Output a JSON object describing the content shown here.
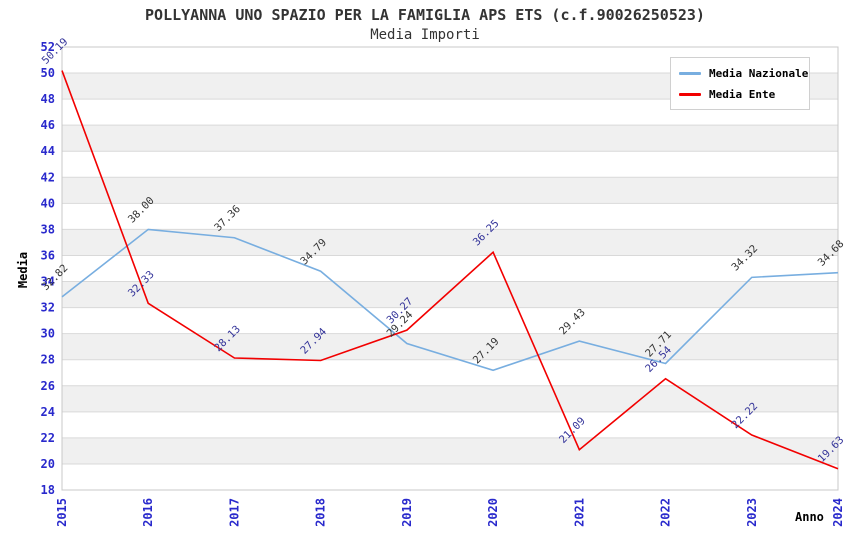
{
  "page": {
    "background": "#FFFFFF"
  },
  "chart_data": {
    "type": "line",
    "title": "POLLYANNA UNO SPAZIO PER LA FAMIGLIA APS ETS (c.f.90026250523)",
    "subtitle": "Media Importi",
    "xlabel": "Anno",
    "ylabel": "Media",
    "categories": [
      "2015",
      "2016",
      "2017",
      "2018",
      "2019",
      "2020",
      "2021",
      "2022",
      "2023",
      "2024"
    ],
    "series": [
      {
        "name": "Media Nazionale",
        "color": "#78AEE0",
        "label_color": "#333333",
        "values": [
          32.82,
          38.0,
          37.36,
          34.79,
          29.24,
          27.19,
          29.43,
          27.71,
          34.32,
          34.68
        ]
      },
      {
        "name": "Media Ente",
        "color": "#F20000",
        "label_color": "#333399",
        "values": [
          50.19,
          32.33,
          28.13,
          27.94,
          30.27,
          36.25,
          21.09,
          26.54,
          22.22,
          19.63
        ]
      }
    ],
    "ylim": [
      18,
      52
    ],
    "ytick_step": 2,
    "grid": "horizontal-only",
    "legend_position": "top-right",
    "styles": {
      "tick_label_color": "#2929CC",
      "grid_color": "#D9D9D9",
      "band_color": "#F0F0F0",
      "frame_color": "#C8C8C8",
      "title_color": "#333333",
      "axis_title_color": "#000000",
      "legend_border_color": "#D0D0D0",
      "legend_background": "#FFFFFF"
    }
  }
}
